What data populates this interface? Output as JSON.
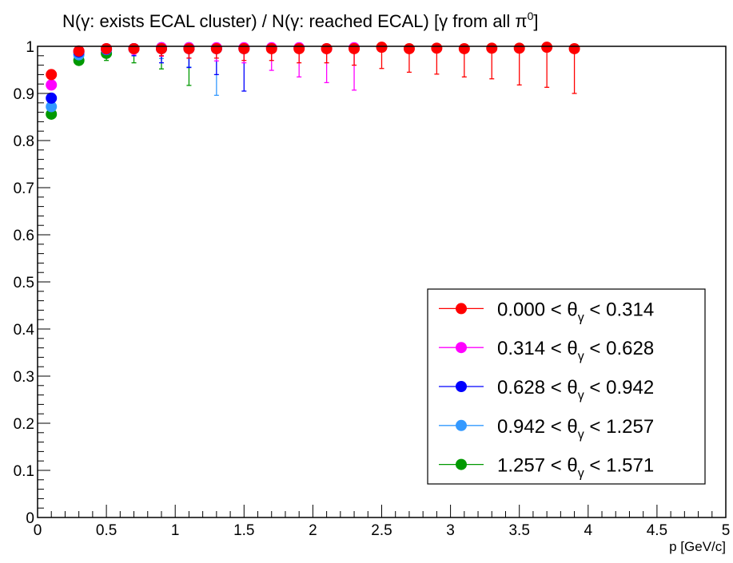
{
  "chart_data": {
    "type": "scatter",
    "title": "N(γ: exists ECAL cluster) / N(γ: reached ECAL)   [γ from all π⁰]",
    "xlabel": "p [GeV/c]",
    "ylabel": "",
    "xlim": [
      0,
      5
    ],
    "ylim": [
      0,
      1
    ],
    "x_ticks": [
      "0",
      "0.5",
      "1",
      "1.5",
      "2",
      "2.5",
      "3",
      "3.5",
      "4",
      "4.5",
      "5"
    ],
    "y_ticks": [
      "0",
      "0.1",
      "0.2",
      "0.3",
      "0.4",
      "0.5",
      "0.6",
      "0.7",
      "0.8",
      "0.9",
      "1"
    ],
    "legend_position": "bottom-right",
    "grid": false,
    "series": [
      {
        "name": "0.000 < θγ < 0.314",
        "color": "#ff0000",
        "points": [
          {
            "x": 0.1,
            "y": 0.94,
            "err": 0.003
          },
          {
            "x": 0.3,
            "y": 0.99,
            "err": 0.004
          },
          {
            "x": 0.5,
            "y": 0.995,
            "err": 0.005
          },
          {
            "x": 0.7,
            "y": 0.995,
            "err": 0.01
          },
          {
            "x": 0.9,
            "y": 0.995,
            "err": 0.015
          },
          {
            "x": 1.1,
            "y": 0.995,
            "err": 0.02
          },
          {
            "x": 1.3,
            "y": 0.995,
            "err": 0.02
          },
          {
            "x": 1.5,
            "y": 0.995,
            "err": 0.025
          },
          {
            "x": 1.7,
            "y": 0.995,
            "err": 0.025
          },
          {
            "x": 1.9,
            "y": 0.995,
            "err": 0.03
          },
          {
            "x": 2.1,
            "y": 0.995,
            "err": 0.03
          },
          {
            "x": 2.3,
            "y": 0.995,
            "err": 0.035
          },
          {
            "x": 2.5,
            "y": 0.998,
            "err": 0.045
          },
          {
            "x": 2.7,
            "y": 0.995,
            "err": 0.05
          },
          {
            "x": 2.9,
            "y": 0.996,
            "err": 0.055
          },
          {
            "x": 3.1,
            "y": 0.995,
            "err": 0.06
          },
          {
            "x": 3.3,
            "y": 0.996,
            "err": 0.065
          },
          {
            "x": 3.5,
            "y": 0.996,
            "err": 0.078
          },
          {
            "x": 3.7,
            "y": 0.998,
            "err": 0.085
          },
          {
            "x": 3.9,
            "y": 0.995,
            "err": 0.095
          }
        ]
      },
      {
        "name": "0.314 < θγ < 0.628",
        "color": "#ff00ff",
        "points": [
          {
            "x": 0.1,
            "y": 0.918,
            "err": 0.004
          },
          {
            "x": 0.3,
            "y": 0.99,
            "err": 0.005
          },
          {
            "x": 0.5,
            "y": 0.995,
            "err": 0.008
          },
          {
            "x": 0.7,
            "y": 0.995,
            "err": 0.012
          },
          {
            "x": 0.9,
            "y": 0.997,
            "err": 0.018
          },
          {
            "x": 1.1,
            "y": 0.997,
            "err": 0.022
          },
          {
            "x": 1.3,
            "y": 0.997,
            "err": 0.028
          },
          {
            "x": 1.5,
            "y": 0.997,
            "err": 0.032
          },
          {
            "x": 1.7,
            "y": 0.997,
            "err": 0.048
          },
          {
            "x": 1.9,
            "y": 0.997,
            "err": 0.062
          },
          {
            "x": 2.1,
            "y": 0.995,
            "err": 0.072
          },
          {
            "x": 2.3,
            "y": 0.997,
            "err": 0.09
          }
        ]
      },
      {
        "name": "0.628 < θγ < 0.942",
        "color": "#0000ff",
        "points": [
          {
            "x": 0.1,
            "y": 0.89,
            "err": 0.004
          },
          {
            "x": 0.3,
            "y": 0.988,
            "err": 0.006
          },
          {
            "x": 0.5,
            "y": 0.994,
            "err": 0.01
          },
          {
            "x": 0.7,
            "y": 0.995,
            "err": 0.015
          },
          {
            "x": 0.9,
            "y": 0.995,
            "err": 0.03
          },
          {
            "x": 1.1,
            "y": 0.995,
            "err": 0.04
          },
          {
            "x": 1.3,
            "y": 0.995,
            "err": 0.055
          },
          {
            "x": 1.5,
            "y": 0.995,
            "err": 0.09
          }
        ]
      },
      {
        "name": "0.942 < θγ < 1.257",
        "color": "#3399ff",
        "points": [
          {
            "x": 0.1,
            "y": 0.872,
            "err": 0.004
          },
          {
            "x": 0.3,
            "y": 0.982,
            "err": 0.006
          },
          {
            "x": 0.5,
            "y": 0.993,
            "err": 0.01
          },
          {
            "x": 0.7,
            "y": 0.995,
            "err": 0.015
          },
          {
            "x": 0.9,
            "y": 0.996,
            "err": 0.022
          },
          {
            "x": 1.1,
            "y": 0.996,
            "err": 0.04
          },
          {
            "x": 1.3,
            "y": 0.996,
            "err": 0.1
          }
        ]
      },
      {
        "name": "1.257 < θγ < 1.571",
        "color": "#009900",
        "points": [
          {
            "x": 0.1,
            "y": 0.856,
            "err": 0.004
          },
          {
            "x": 0.3,
            "y": 0.97,
            "err": 0.007
          },
          {
            "x": 0.5,
            "y": 0.985,
            "err": 0.015
          },
          {
            "x": 0.7,
            "y": 0.995,
            "err": 0.03
          },
          {
            "x": 0.9,
            "y": 0.997,
            "err": 0.045
          },
          {
            "x": 1.1,
            "y": 0.997,
            "err": 0.08
          }
        ]
      }
    ]
  }
}
